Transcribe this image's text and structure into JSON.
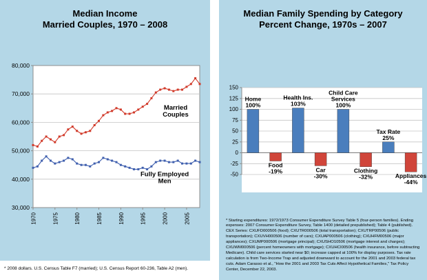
{
  "left_panel": {
    "title_line1": "Median Income",
    "title_line2": "Married Couples, 1970 – 2008",
    "footnote": "* 2008 dollars. U.S. Census Table F7 (married); U.S. Census Report 60-236, Table A2 (men).",
    "series_labels": [
      "Married Couples",
      "Fully Employed Men"
    ]
  },
  "right_panel": {
    "title_line1": "Median Family Spending by Category",
    "title_line2": "Percent Change, 1970s – 2007",
    "footnote": "* Starting expenditures: 1972/1973 Consumer Expenditure Survey Table 5 (four-person families). Ending expenses: 2007 Consumer Expenditure Survey, Table 1400 (detailed prepublished); Table 4 (published). CEX Series: CXUFD000506 (food); CXUTR000506 (total transportation); CXUTRP00506 (public transportation); CXUVH000506 (number of cars); CXUAP000506 (clothing); CXUHFM00506 (major appliances); CXUMP000506 (mortgage principal); CXUSHO10506 (mortgage interest and charges); CXUWM000506 (percent homeowners with mortgage); CXUHCI00506 (health insurance, before subtracting Medicare). Child care services started near $0; increase capped at 100% for display purposes. Tax rate calculation is from Two-Income Trap and adjusted downward to account for the 2001 and 2003 federal tax cuts. Adam Carasso et al., \"How the 2001 and 2003 Tax Cuts Affect Hypothetical Families,\" Tax Policy Center, December 22, 2003."
  },
  "colors": {
    "panel_bg": "#b4d7e7",
    "line_married": "#d13a2a",
    "line_men": "#3f5fae",
    "bar_positive": "#4a7ebd",
    "bar_negative": "#d0453a",
    "gridline": "#c4c4c4",
    "axis": "#8c8c8c"
  },
  "chart_data": [
    {
      "type": "line",
      "title": "Median Income, Married Couples, 1970 – 2008",
      "xlabel": "",
      "ylabel": "",
      "ylim": [
        30000,
        80000
      ],
      "ytick_values": [
        30000,
        40000,
        50000,
        60000,
        70000,
        80000
      ],
      "ytick_labels": [
        "30,000",
        "40,000",
        "50,000",
        "60,000",
        "70,000",
        "80,000"
      ],
      "xticks": [
        1970,
        1975,
        1980,
        1985,
        1990,
        1995,
        2000,
        2005
      ],
      "grid": true,
      "legend_position": "inline-annotations",
      "x": [
        1970,
        1971,
        1972,
        1973,
        1974,
        1975,
        1976,
        1977,
        1978,
        1979,
        1980,
        1981,
        1982,
        1983,
        1984,
        1985,
        1986,
        1987,
        1988,
        1989,
        1990,
        1991,
        1992,
        1993,
        1994,
        1995,
        1996,
        1997,
        1998,
        1999,
        2000,
        2001,
        2002,
        2003,
        2004,
        2005,
        2006,
        2007,
        2008
      ],
      "series": [
        {
          "name": "Married Couples",
          "color_key": "line_married",
          "values": [
            52000,
            51500,
            53500,
            55000,
            54000,
            53000,
            55000,
            55500,
            57500,
            58500,
            57000,
            56000,
            56500,
            57000,
            59000,
            60500,
            62500,
            63500,
            64000,
            65000,
            64500,
            63000,
            63000,
            63500,
            64500,
            65500,
            66500,
            68500,
            70500,
            71500,
            72000,
            71500,
            71000,
            71500,
            71500,
            72500,
            73500,
            75500,
            73500
          ]
        },
        {
          "name": "Fully Employed Men",
          "color_key": "line_men",
          "values": [
            44000,
            44500,
            46500,
            48000,
            46500,
            45500,
            46000,
            46500,
            47500,
            47000,
            45500,
            45000,
            45000,
            44500,
            45500,
            46000,
            47500,
            47000,
            46500,
            46000,
            45000,
            44500,
            44000,
            43500,
            43500,
            44000,
            43500,
            44500,
            46000,
            46500,
            46500,
            46000,
            46000,
            46500,
            45500,
            45500,
            45500,
            46500,
            46000
          ]
        }
      ],
      "annotations": [
        {
          "text": "Married Couples",
          "lines": [
            "Married",
            "Couples"
          ],
          "x": 2002.5,
          "y": 64500
        },
        {
          "text": "Fully Employed Men",
          "lines": [
            "Fully Employed",
            "Men"
          ],
          "x": 2000,
          "y": 41000
        }
      ]
    },
    {
      "type": "bar",
      "title": "Median Family Spending by Category, Percent Change, 1970s – 2007",
      "xlabel": "",
      "ylabel": "",
      "ylim": [
        -50,
        150
      ],
      "ytick_values": [
        -50,
        -25,
        0,
        25,
        50,
        75,
        100,
        125,
        150
      ],
      "ytick_labels": [
        "-50",
        "-25",
        "0",
        "25",
        "50",
        "75",
        "100",
        "125",
        "150"
      ],
      "grid": true,
      "categories": [
        "Home",
        "Food",
        "Health Ins.",
        "Car",
        "Child Care Services",
        "Clothing",
        "Tax Rate",
        "Appliances"
      ],
      "values": [
        100,
        -19,
        103,
        -30,
        100,
        -32,
        25,
        -44
      ],
      "value_labels": [
        "100%",
        "-19%",
        "103%",
        "-30%",
        "100%",
        "-32%",
        "25%",
        "-44%"
      ],
      "category_label_lines": [
        [
          "Home"
        ],
        [
          "Food"
        ],
        [
          "Health Ins."
        ],
        [
          "Car"
        ],
        [
          "Child Care",
          "Services"
        ],
        [
          "Clothing"
        ],
        [
          "Tax Rate"
        ],
        [
          "Appliances"
        ]
      ]
    }
  ]
}
